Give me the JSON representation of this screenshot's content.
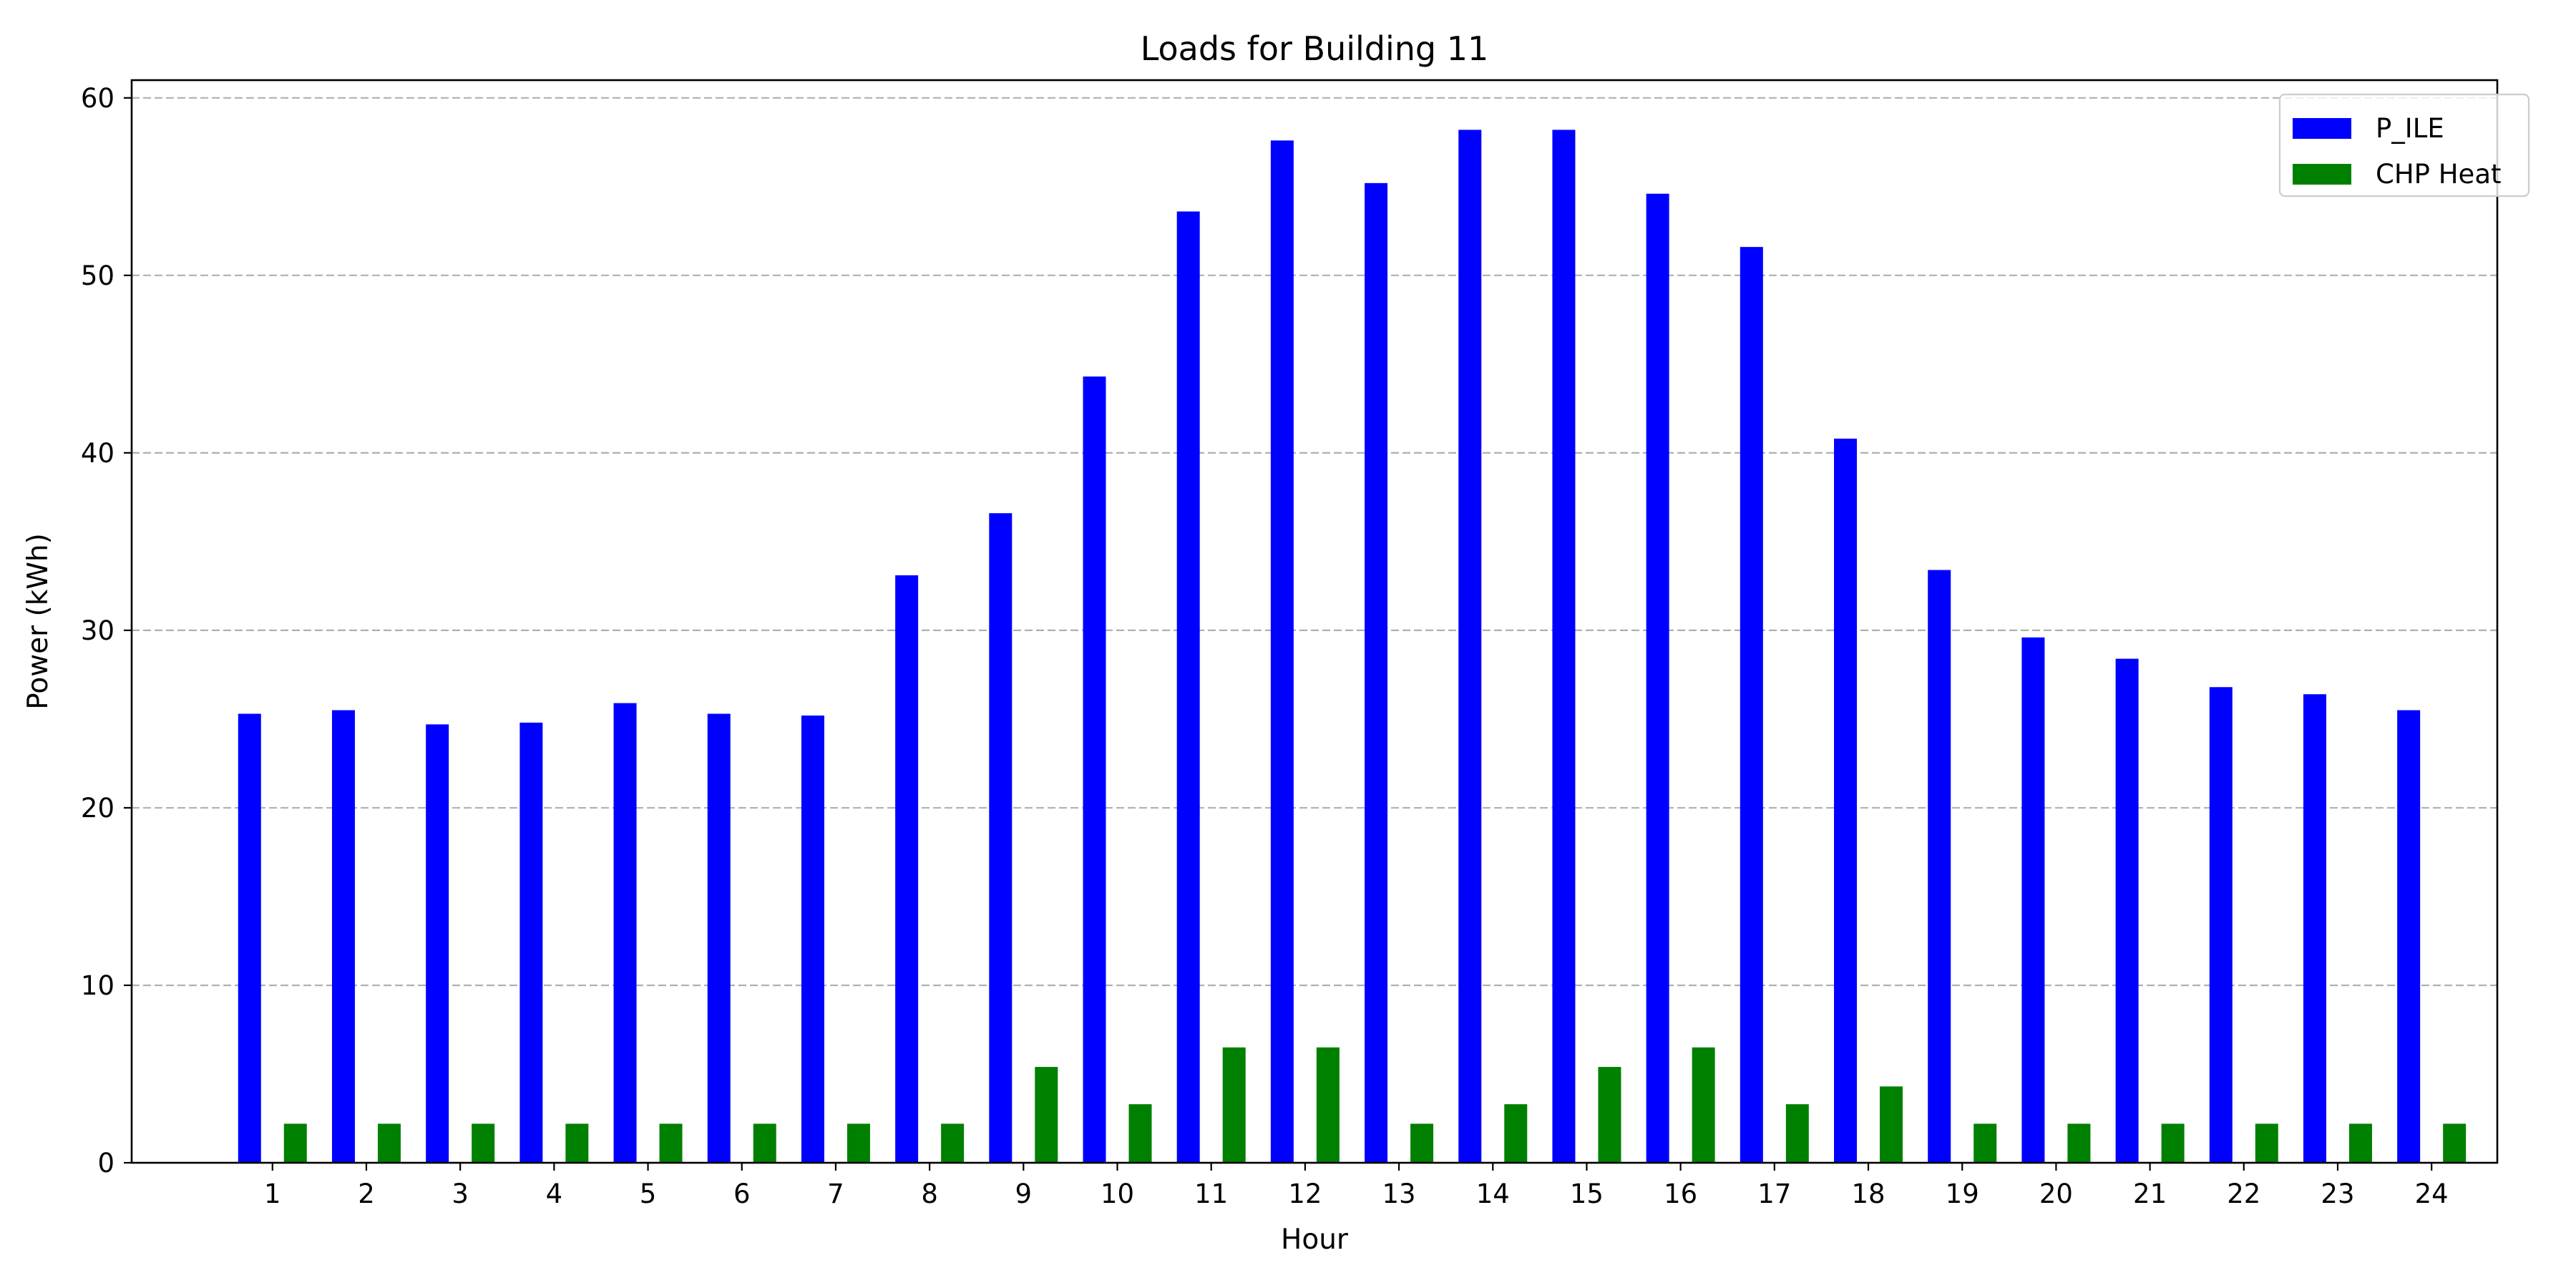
{
  "chart_data": {
    "type": "bar",
    "title": "Loads for Building 11",
    "xlabel": "Hour",
    "ylabel": "Power (kWh)",
    "categories": [
      "1",
      "2",
      "3",
      "4",
      "5",
      "6",
      "7",
      "8",
      "9",
      "10",
      "11",
      "12",
      "13",
      "14",
      "15",
      "16",
      "17",
      "18",
      "19",
      "20",
      "21",
      "22",
      "23",
      "24"
    ],
    "series": [
      {
        "name": "P_ILE",
        "color": "#0000ff",
        "values": [
          25.3,
          25.5,
          24.7,
          24.8,
          25.9,
          25.3,
          25.2,
          33.1,
          36.6,
          44.3,
          53.6,
          57.6,
          55.2,
          58.2,
          58.2,
          54.6,
          51.6,
          40.8,
          33.4,
          29.6,
          28.4,
          26.8,
          26.4,
          25.5
        ]
      },
      {
        "name": "CHP Heat",
        "color": "#008000",
        "values": [
          2.2,
          2.2,
          2.2,
          2.2,
          2.2,
          2.2,
          2.2,
          2.2,
          5.4,
          3.3,
          6.5,
          6.5,
          2.2,
          3.3,
          5.4,
          6.5,
          3.3,
          4.3,
          2.2,
          2.2,
          2.2,
          2.2,
          2.2,
          2.2
        ]
      }
    ],
    "ylim": [
      0,
      61
    ],
    "yticks": [
      0,
      10,
      20,
      30,
      40,
      50,
      60
    ],
    "grid": "y-dashed",
    "legend_position": "top-right"
  }
}
